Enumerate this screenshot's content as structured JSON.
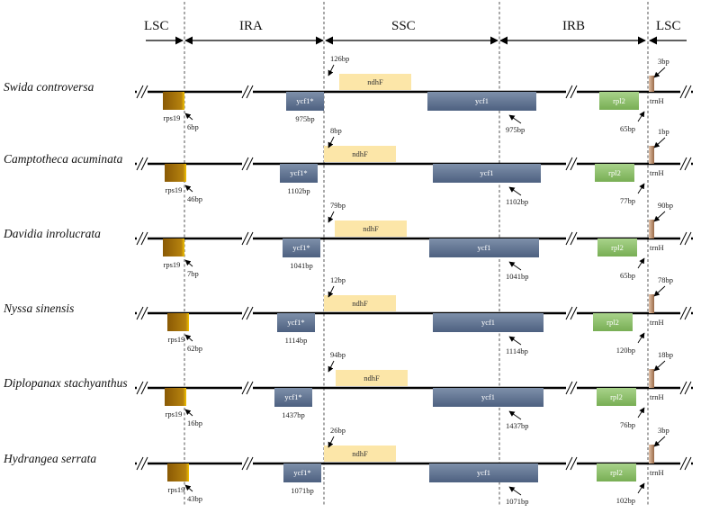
{
  "regions": [
    {
      "label": "LSC"
    },
    {
      "label": "IRA"
    },
    {
      "label": "SSC"
    },
    {
      "label": "IRB"
    },
    {
      "label": "LSC"
    }
  ],
  "colors": {
    "rps19": "#b07d0c",
    "ycf1": "#5f7391",
    "ndhF": "#fce6a8",
    "rpl2": "#8fbf6c",
    "trnH": "#c09070",
    "backbone": "#000000"
  },
  "genes": {
    "rps19": "rps19",
    "ycf1_partial": "ycf1*",
    "ycf1": "ycf1",
    "ndhF": "ndhF",
    "rpl2": "rpl2",
    "trnH": "trnH"
  },
  "species": [
    {
      "name": "Swida controversa",
      "rps19_bp": "6bp",
      "ycf1_partial_bp": "975bp",
      "ndhF_bp": "126bp",
      "ycf1_bp": "975bp",
      "rpl2_bp": "65bp",
      "trnH_bp": "3bp"
    },
    {
      "name": "Camptotheca acuminata",
      "rps19_bp": "46bp",
      "ycf1_partial_bp": "1102bp",
      "ndhF_bp": "8bp",
      "ycf1_bp": "1102bp",
      "rpl2_bp": "77bp",
      "trnH_bp": "1bp"
    },
    {
      "name": "Davidia inrolucrata",
      "rps19_bp": "7bp",
      "ycf1_partial_bp": "1041bp",
      "ndhF_bp": "79bp",
      "ycf1_bp": "1041bp",
      "rpl2_bp": "65bp",
      "trnH_bp": "90bp"
    },
    {
      "name": "Nyssa sinensis",
      "rps19_bp": "62bp",
      "ycf1_partial_bp": "1114bp",
      "ndhF_bp": "12bp",
      "ycf1_bp": "1114bp",
      "rpl2_bp": "120bp",
      "trnH_bp": "78bp"
    },
    {
      "name": "Diplopanax stachyanthus",
      "rps19_bp": "16bp",
      "ycf1_partial_bp": "1437bp",
      "ndhF_bp": "94bp",
      "ycf1_bp": "1437bp",
      "rpl2_bp": "76bp",
      "trnH_bp": "18bp"
    },
    {
      "name": "Hydrangea serrata",
      "rps19_bp": "43bp",
      "ycf1_partial_bp": "1071bp",
      "ndhF_bp": "26bp",
      "ycf1_bp": "1071bp",
      "rpl2_bp": "102bp",
      "trnH_bp": "3bp"
    }
  ]
}
